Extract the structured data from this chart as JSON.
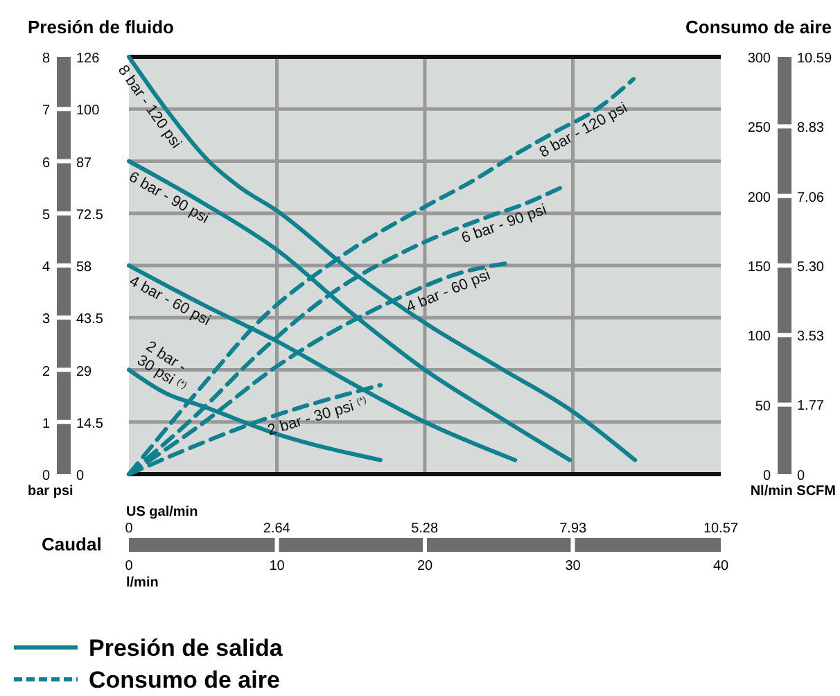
{
  "chart_data": {
    "type": "line",
    "ylabel": "Presión de fluido",
    "y2label": "Consumo de aire",
    "xlabel": "Caudal",
    "grid": true,
    "xlim": [
      0,
      40
    ],
    "xticks": [
      0,
      10,
      20,
      30,
      40
    ],
    "x2lim": [
      0,
      10.57
    ],
    "x2ticks": [
      0,
      2.64,
      5.28,
      7.93,
      10.57
    ],
    "ylim": [
      0,
      8
    ],
    "yticks": [
      0,
      1,
      2,
      3,
      4,
      5,
      6,
      7,
      8
    ],
    "y2lim": [
      0,
      300
    ],
    "y2ticks": [
      0,
      50,
      100,
      150,
      200,
      250,
      300
    ],
    "y3lim": [
      0,
      10.59
    ],
    "y3ticks": [
      0,
      1.77,
      3.53,
      {
        "value": 5.3,
        "label": "5.30"
      },
      7.06,
      8.83,
      10.59
    ],
    "series": [
      {
        "name": "8 bar - 120 psi",
        "color": "#11808f",
        "x": [
          0,
          2.5,
          5.4,
          7.5,
          10,
          15,
          20,
          25,
          30,
          34.2
        ],
        "values": [
          8,
          7,
          6,
          5.5,
          5.05,
          3.9,
          2.9,
          2.05,
          1.2,
          0.27
        ]
      },
      {
        "name": "6 bar - 90 psi",
        "color": "#11808f",
        "x": [
          0,
          5,
          10,
          15,
          20,
          25,
          29.8
        ],
        "values": [
          6,
          5.2,
          4.3,
          3.1,
          2,
          1.1,
          0.27
        ]
      },
      {
        "name": "4 bar - 60 psi",
        "color": "#11808f",
        "x": [
          0,
          5,
          10,
          15,
          20,
          26.1
        ],
        "values": [
          4,
          3.25,
          2.55,
          1.75,
          1,
          0.27
        ]
      },
      {
        "name": "2 bar - 30 psi $^{(*)}$",
        "color": "#11808f",
        "x": [
          0,
          2.5,
          5,
          10,
          17
        ],
        "values": [
          2,
          1.55,
          1.3,
          0.77,
          0.27
        ]
      },
      {
        "name": "8 bar - 120 psi",
        "color": "#11808f",
        "axis": "y2",
        "line_style": "dashed",
        "x": [
          0,
          4.6,
          9,
          14,
          20.3,
          23.1,
          26.3,
          28.8,
          31.7,
          34.1
        ],
        "values": [
          0,
          59,
          112,
          154,
          194,
          210,
          231,
          246,
          263,
          284
        ]
      },
      {
        "name": "6 bar - 90 psi",
        "color": "#11808f",
        "axis": "y2",
        "line_style": "dashed",
        "x": [
          0,
          4.2,
          9,
          13.7,
          19,
          24,
          26.9,
          29.4
        ],
        "values": [
          0,
          39,
          89,
          130,
          162,
          184,
          195,
          207
        ]
      },
      {
        "name": "4 bar - 60 psi",
        "color": "#11808f",
        "axis": "y2",
        "line_style": "dashed",
        "x": [
          0,
          4.4,
          10.2,
          17.7,
          22.5,
          25.8
        ],
        "values": [
          0,
          32,
          79,
          124,
          145,
          152
        ]
      },
      {
        "name": "2 bar - 30 psi $^{(*)}$",
        "color": "#11808f",
        "axis": "y2",
        "line_style": "dashed",
        "x": [
          0,
          2.6,
          9,
          17
        ],
        "values": [
          0,
          12,
          39,
          64
        ]
      }
    ],
    "annotations": [
      "Presión de salida",
      "Consumo de aire",
      "bar psi",
      "Nl/min SCFM",
      "US gal/min",
      "l/min",
      "0",
      "14.5",
      "29",
      "43.5",
      "58",
      "72.5",
      "87",
      "100",
      "126"
    ]
  }
}
